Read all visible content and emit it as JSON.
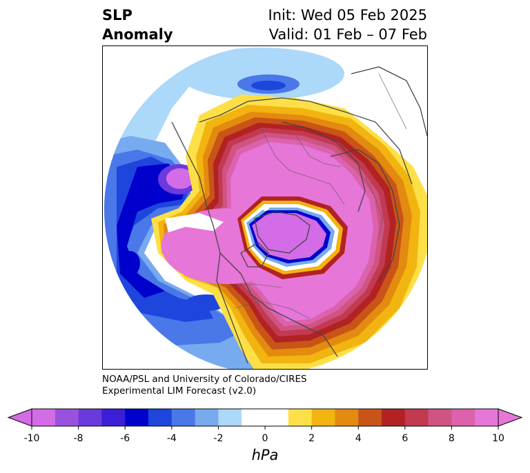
{
  "title": {
    "left_line1": "SLP",
    "left_line2": "Anomaly",
    "right_line1": "Init: Wed 05 Feb 2025",
    "right_line2": "Valid: 01 Feb – 07 Feb"
  },
  "credit": {
    "line1": "NOAA/PSL and University of Colorado/CIRES",
    "line2": "Experimental LIM Forecast (v2.0)"
  },
  "colorbar": {
    "unit": "hPa",
    "ticks": [
      "-10",
      "-8",
      "-6",
      "-4",
      "-2",
      "0",
      "2",
      "4",
      "6",
      "8",
      "10"
    ],
    "colors": [
      "#d36ce6",
      "#9a52de",
      "#6a3adc",
      "#3b1fd6",
      "#0000cc",
      "#1e46dd",
      "#4a78e8",
      "#78aaf0",
      "#acd8fa",
      "#ffffff",
      "#ffffff",
      "#fde048",
      "#f2b410",
      "#e38a10",
      "#c85418",
      "#b22222",
      "#c23a52",
      "#cf5482",
      "#dc62ae",
      "#e676d8"
    ]
  },
  "map_regions": {
    "projection": "North polar stereographic",
    "anomaly_centers": [
      {
        "region": "Arctic / Canada / Greenland / Eurasia",
        "sign": "positive"
      },
      {
        "region": "North Pacific / Gulf of Alaska",
        "sign": "negative"
      },
      {
        "region": "Central Pacific",
        "sign": "negative"
      },
      {
        "region": "Southwestern North America",
        "sign": "negative"
      }
    ]
  }
}
